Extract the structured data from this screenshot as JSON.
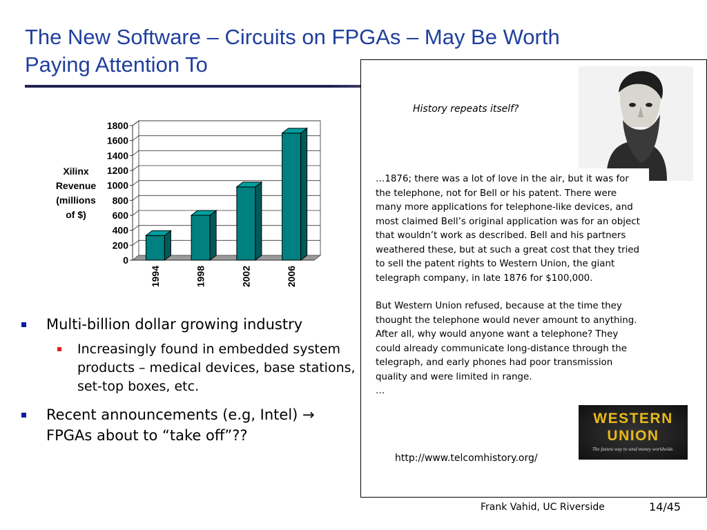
{
  "slide": {
    "title": "The New Software – Circuits on FPGAs – May Be Worth Paying Attention To",
    "footer_author": "Frank Vahid, UC Riverside",
    "page_number": "14/45"
  },
  "chart_data": {
    "type": "bar",
    "categories": [
      "1994",
      "1998",
      "2002",
      "2006"
    ],
    "values": [
      330,
      600,
      980,
      1700
    ],
    "ylabel_lines": [
      "Xilinx",
      "Revenue",
      "(millions",
      "of $)"
    ],
    "yticks": [
      0,
      200,
      400,
      600,
      800,
      1000,
      1200,
      1400,
      1600,
      1800
    ],
    "ylim": [
      0,
      1800
    ],
    "grid": true,
    "bar_color": "#008080"
  },
  "bullets": [
    {
      "text": "Multi-billion dollar growing industry",
      "sub": [
        "Increasingly found in embedded system products – medical devices, base stations, set-top boxes, etc."
      ]
    },
    {
      "text": "Recent announcements (e.g, Intel) → FPGAs about to “take off”??",
      "sub": []
    }
  ],
  "sidebar": {
    "caption": "History repeats itself?",
    "paragraph1": "…1876; there was a lot of love in the air, but it was for the telephone, not for Bell or his patent. There were many more applications for telephone-like devices, and most claimed Bell’s original application was for an object that wouldn’t work as described. Bell and his partners weathered these, but at such a great cost that they tried to sell the patent rights to Western Union, the giant telegraph company, in late 1876 for $100,000.",
    "paragraph2": "But Western Union refused, because at the time they thought the telephone would never amount to anything. After all, why would anyone want a telephone? They could already communicate long-distance through the telegraph, and early phones had poor transmission quality and were limited in range.",
    "ellipsis": "…",
    "source_url": "http://www.telcomhistory.org/",
    "logo_word1": "WESTERN",
    "logo_word2": "UNION",
    "logo_tagline": "The fastest way to send money worldwide."
  },
  "colors": {
    "title": "#1f3f9c",
    "bullet_level1": "#0b1aa3",
    "bullet_level2": "#e01c1c",
    "logo_gold": "#e8b81c"
  }
}
